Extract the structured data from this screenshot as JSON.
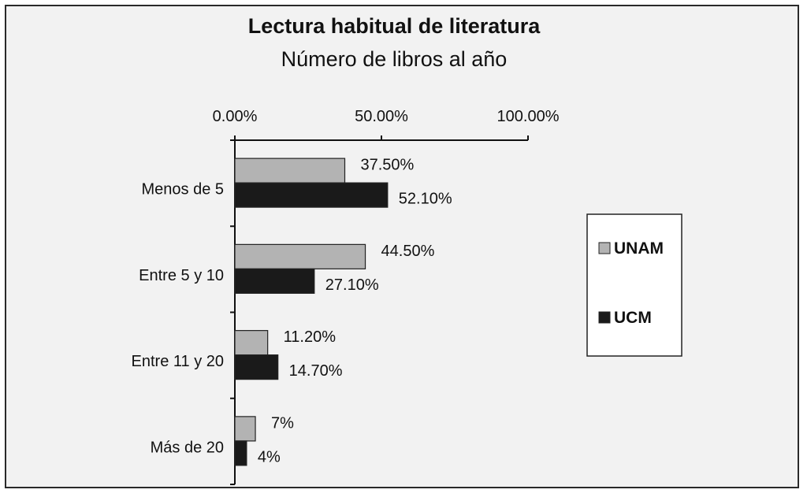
{
  "chart_data": {
    "type": "bar",
    "orientation": "horizontal",
    "title": "Lectura habitual de literatura",
    "subtitle": "Número de libros al año",
    "categories": [
      "Menos de 5",
      "Entre 5 y 10",
      "Entre 11 y 20",
      "Más de 20"
    ],
    "series": [
      {
        "name": "UNAM",
        "values": [
          37.5,
          44.5,
          11.2,
          7
        ],
        "labels": [
          "37.50%",
          "44.50%",
          "11.20%",
          "7%"
        ],
        "color": "#b3b3b3"
      },
      {
        "name": "UCM",
        "values": [
          52.1,
          27.1,
          14.7,
          4
        ],
        "labels": [
          "52.10%",
          "27.10%",
          "14.70%",
          "4%"
        ],
        "color": "#1a1a1a"
      }
    ],
    "xlim": [
      0,
      100
    ],
    "x_ticks": [
      0,
      50,
      100
    ],
    "x_tick_labels": [
      "0.00%",
      "50.00%",
      "100.00%"
    ],
    "x_axis_position": "top",
    "grid": false,
    "legend_position": "right"
  }
}
